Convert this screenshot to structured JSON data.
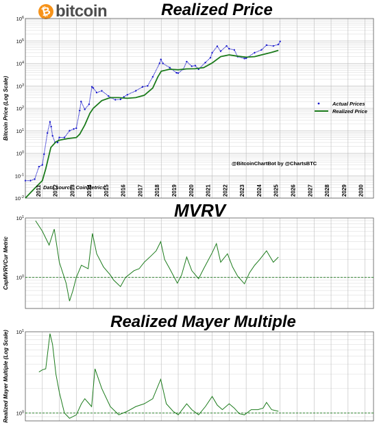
{
  "header": {
    "logo_text": "bitcoin",
    "logo_symbol": "₿"
  },
  "colors": {
    "actual_price": "#1a1acc",
    "realized": "#1a7a1a",
    "grid": "#cccccc",
    "reference_line": "#1a7a1a",
    "logo": "#f7931a"
  },
  "chart_data": [
    {
      "type": "line",
      "title": "Realized Price",
      "ylabel": "Bitcoin Price (Log Scale)",
      "yscale": "log",
      "ylim": [
        0.01,
        1000000
      ],
      "xlim": [
        2010.0,
        2030.5
      ],
      "ytick_labels": [
        "10^-2",
        "10^-1",
        "10^0",
        "10^1",
        "10^2",
        "10^3",
        "10^4",
        "10^5",
        "10^6"
      ],
      "x_ticks": [
        "2011",
        "2012",
        "2013",
        "2014",
        "2015",
        "2016",
        "2017",
        "2018",
        "2019",
        "2020",
        "2021",
        "2022",
        "2023",
        "2024",
        "2025",
        "2026",
        "2027",
        "2028",
        "2029",
        "2030"
      ],
      "legend": {
        "position": "right",
        "entries": [
          "Actual Prices",
          "Realized Price"
        ]
      },
      "annotations": [
        "@BitcoinChartBot by @ChartsBTC",
        "Data source: CoinMetrics"
      ],
      "grid": true,
      "series": [
        {
          "name": "Actual Prices",
          "style": "dots",
          "x": [
            2010.0,
            2010.3,
            2010.55,
            2010.8,
            2011.0,
            2011.1,
            2011.3,
            2011.45,
            2011.52,
            2011.6,
            2011.75,
            2011.9,
            2012.0,
            2012.3,
            2012.6,
            2012.85,
            2013.0,
            2013.2,
            2013.28,
            2013.5,
            2013.75,
            2013.92,
            2014.0,
            2014.2,
            2014.5,
            2014.9,
            2015.0,
            2015.3,
            2015.6,
            2015.8,
            2016.0,
            2016.5,
            2016.9,
            2017.2,
            2017.5,
            2017.9,
            2017.98,
            2018.1,
            2018.5,
            2018.9,
            2019.0,
            2019.3,
            2019.5,
            2019.8,
            2020.0,
            2020.2,
            2020.6,
            2020.9,
            2021.0,
            2021.3,
            2021.5,
            2021.85,
            2022.0,
            2022.3,
            2022.5,
            2022.9,
            2023.0,
            2023.5,
            2023.9,
            2024.2,
            2024.6,
            2024.9,
            2025.0
          ],
          "y": [
            0.06,
            0.06,
            0.07,
            0.25,
            0.3,
            0.9,
            8,
            25,
            15,
            6,
            3,
            3,
            5,
            5,
            10,
            12,
            13,
            80,
            200,
            90,
            150,
            900,
            800,
            500,
            600,
            350,
            300,
            240,
            250,
            320,
            400,
            600,
            900,
            1000,
            2500,
            10000,
            15000,
            10000,
            6500,
            3800,
            3700,
            5500,
            12000,
            7500,
            8000,
            5500,
            11000,
            18000,
            30000,
            58000,
            35000,
            60000,
            45000,
            40000,
            20000,
            16500,
            17000,
            30000,
            40000,
            65000,
            60000,
            70000,
            95000
          ]
        },
        {
          "name": "Realized Price",
          "style": "line",
          "x": [
            2010.0,
            2010.5,
            2011.0,
            2011.2,
            2011.5,
            2011.8,
            2012.0,
            2012.5,
            2013.0,
            2013.2,
            2013.5,
            2013.8,
            2014.0,
            2014.5,
            2015.0,
            2015.5,
            2016.0,
            2016.5,
            2017.0,
            2017.5,
            2017.8,
            2018.0,
            2018.5,
            2019.0,
            2019.5,
            2020.0,
            2020.5,
            2021.0,
            2021.5,
            2022.0,
            2022.5,
            2023.0,
            2023.5,
            2024.0,
            2024.5,
            2024.9
          ],
          "y": [
            0.01,
            0.025,
            0.06,
            0.2,
            1.8,
            3.2,
            3.8,
            4.5,
            5,
            7,
            18,
            60,
            100,
            220,
            300,
            300,
            280,
            300,
            380,
            800,
            2500,
            4500,
            5500,
            5200,
            5700,
            5800,
            6500,
            10500,
            20000,
            24000,
            21000,
            19000,
            20000,
            25000,
            31000,
            38000
          ]
        }
      ]
    },
    {
      "type": "line",
      "title": "MVRV",
      "ylabel": "CapMVRVCur Metric",
      "yscale": "log",
      "ylim": [
        0.3,
        10
      ],
      "xlim": [
        2010.0,
        2030.5
      ],
      "ytick_labels": [
        "10^0",
        "10^1"
      ],
      "reference_line": 1,
      "grid": true,
      "series": [
        {
          "name": "",
          "x": [
            2010.6,
            2011.0,
            2011.4,
            2011.7,
            2012.0,
            2012.4,
            2012.6,
            2012.8,
            2013.0,
            2013.3,
            2013.7,
            2013.95,
            2014.2,
            2014.6,
            2015.0,
            2015.2,
            2015.6,
            2015.9,
            2016.4,
            2016.7,
            2017.0,
            2017.4,
            2017.7,
            2017.97,
            2018.2,
            2018.5,
            2018.95,
            2019.2,
            2019.5,
            2019.8,
            2020.2,
            2020.5,
            2021.0,
            2021.25,
            2021.5,
            2021.9,
            2022.2,
            2022.5,
            2022.9,
            2023.2,
            2023.5,
            2023.8,
            2024.2,
            2024.6,
            2024.9
          ],
          "y": [
            9,
            6,
            3.5,
            6.5,
            1.8,
            0.8,
            0.4,
            0.6,
            1,
            1.6,
            1.4,
            5.5,
            2.5,
            1.5,
            1.1,
            0.9,
            0.7,
            1,
            1.3,
            1.4,
            1.8,
            2.3,
            2.8,
            4,
            2,
            1.4,
            0.8,
            1.1,
            2.2,
            1.3,
            0.95,
            1.4,
            2.6,
            3.7,
            1.8,
            2.5,
            1.5,
            1.05,
            0.78,
            1.2,
            1.6,
            2,
            2.8,
            1.8,
            2.2
          ]
        }
      ]
    },
    {
      "type": "line",
      "title": "Realized Mayer Multiple",
      "ylabel": "Realized Mayer Multiple (Log Scale)",
      "yscale": "log",
      "ylim": [
        0.8,
        10
      ],
      "xlim": [
        2010.0,
        2030.5
      ],
      "ytick_labels": [
        "10^0",
        "10^1"
      ],
      "reference_line": 1,
      "grid": true,
      "series": [
        {
          "name": "",
          "x": [
            2010.8,
            2011.0,
            2011.2,
            2011.45,
            2011.6,
            2011.8,
            2012.0,
            2012.3,
            2012.6,
            2013.0,
            2013.3,
            2013.5,
            2013.9,
            2014.1,
            2014.5,
            2015.0,
            2015.5,
            2016.0,
            2016.5,
            2017.0,
            2017.5,
            2017.97,
            2018.3,
            2018.7,
            2019.0,
            2019.5,
            2019.8,
            2020.2,
            2020.6,
            2021.0,
            2021.3,
            2021.6,
            2022.0,
            2022.3,
            2022.6,
            2022.9,
            2023.3,
            2023.7,
            2024.0,
            2024.2,
            2024.5,
            2024.9
          ],
          "y": [
            3.2,
            3.4,
            3.5,
            9.5,
            7,
            3,
            1.8,
            1,
            0.86,
            0.95,
            1.3,
            1.5,
            1.2,
            3.5,
            2,
            1.2,
            0.95,
            1.05,
            1.2,
            1.3,
            1.5,
            2.6,
            1.3,
            1.05,
            0.95,
            1.3,
            1.1,
            0.95,
            1.2,
            1.6,
            1.25,
            1.1,
            1.3,
            1.15,
            0.98,
            0.95,
            1.1,
            1.1,
            1.15,
            1.35,
            1.1,
            1.05
          ]
        }
      ]
    }
  ]
}
